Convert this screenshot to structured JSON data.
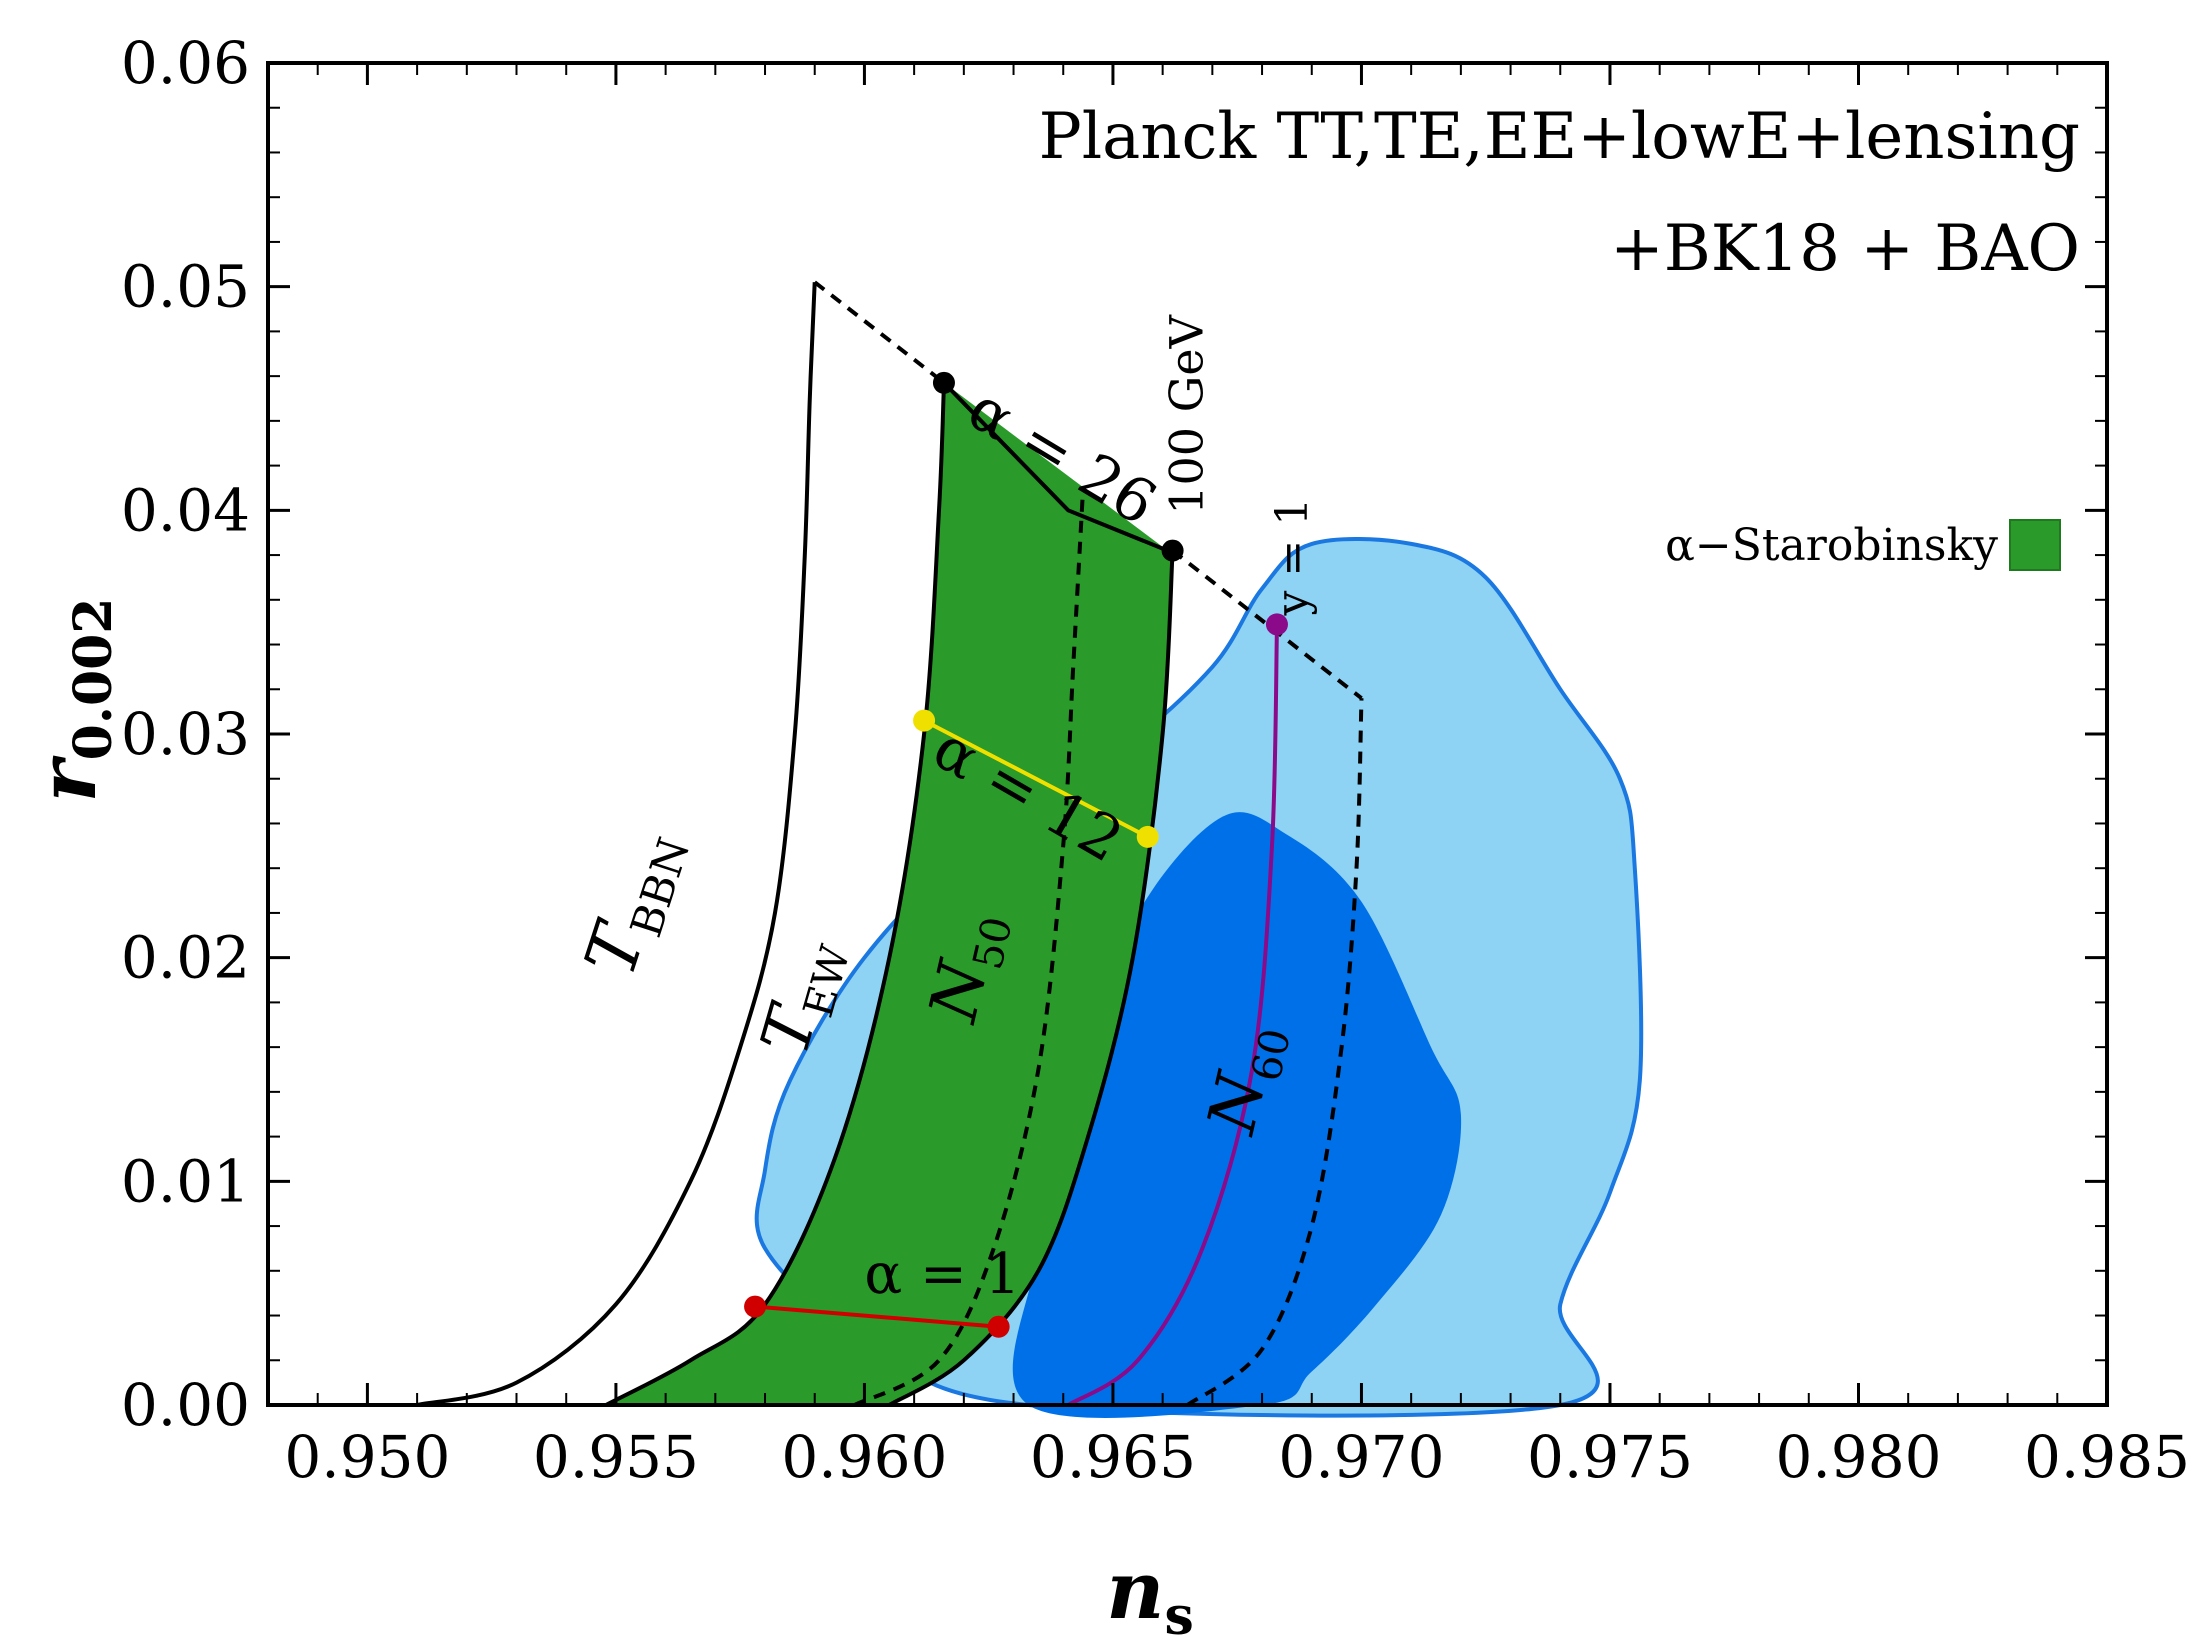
{
  "chart_data": {
    "type": "area",
    "title_lines": [
      "Planck TT,TE,EE+lowE+lensing",
      "+BK18 + BAO"
    ],
    "xlabel": "n",
    "xlabel_sub": "s",
    "ylabel": "r",
    "ylabel_sub": "0.002",
    "xlim": [
      0.948,
      0.985
    ],
    "ylim": [
      0.0,
      0.06
    ],
    "xticks": [
      "0.950",
      "0.955",
      "0.960",
      "0.965",
      "0.970",
      "0.975",
      "0.980",
      "0.985"
    ],
    "yticks": [
      "0.00",
      "0.01",
      "0.02",
      "0.03",
      "0.04",
      "0.05",
      "0.06"
    ],
    "legend": {
      "label": "α−Starobinsky",
      "color": "#2a9a2a",
      "placement": "right-middle"
    },
    "colors": {
      "contour_68": "#0070e8",
      "contour_95": "#8ed2f4",
      "contour_edge": "#1a78e0",
      "region": "#2a9a2a",
      "alpha1_line": "#d00000",
      "alpha12_line": "#f0e000",
      "y1_line": "#8a0a8a"
    },
    "contours": {
      "sigma2": [
        [
          0.958,
          0.0105
        ],
        [
          0.9585,
          0.0145
        ],
        [
          0.96,
          0.02
        ],
        [
          0.962,
          0.0245
        ],
        [
          0.965,
          0.029
        ],
        [
          0.967,
          0.033
        ],
        [
          0.968,
          0.0365
        ],
        [
          0.969,
          0.0385
        ],
        [
          0.971,
          0.0385
        ],
        [
          0.9725,
          0.037
        ],
        [
          0.974,
          0.032
        ],
        [
          0.9752,
          0.028
        ],
        [
          0.9755,
          0.024
        ],
        [
          0.9756,
          0.0145
        ],
        [
          0.975,
          0.0095
        ],
        [
          0.974,
          0.0045
        ],
        [
          0.974,
          0.0
        ],
        [
          0.9633,
          0.0
        ],
        [
          0.96,
          0.003
        ],
        [
          0.958,
          0.007
        ]
      ],
      "sigma1": [
        [
          0.9633,
          0.0
        ],
        [
          0.9635,
          0.007
        ],
        [
          0.9642,
          0.015
        ],
        [
          0.9655,
          0.022
        ],
        [
          0.9672,
          0.0263
        ],
        [
          0.9685,
          0.0255
        ],
        [
          0.97,
          0.0225
        ],
        [
          0.9714,
          0.016
        ],
        [
          0.972,
          0.013
        ],
        [
          0.9716,
          0.0085
        ],
        [
          0.9703,
          0.0045
        ],
        [
          0.969,
          0.0015
        ],
        [
          0.968,
          0.0
        ]
      ]
    },
    "curves": {
      "T_BBN": [
        [
          0.951,
          0.0
        ],
        [
          0.953,
          0.001
        ],
        [
          0.955,
          0.0045
        ],
        [
          0.9565,
          0.01
        ],
        [
          0.9575,
          0.016
        ],
        [
          0.9582,
          0.022
        ],
        [
          0.9586,
          0.03
        ],
        [
          0.9588,
          0.038
        ],
        [
          0.9589,
          0.045
        ],
        [
          0.959,
          0.0502
        ]
      ],
      "T_EW": [
        [
          0.9548,
          0.0
        ],
        [
          0.9565,
          0.002
        ],
        [
          0.958,
          0.0045
        ],
        [
          0.9594,
          0.011
        ],
        [
          0.9605,
          0.02
        ],
        [
          0.9612,
          0.03
        ],
        [
          0.9615,
          0.04
        ],
        [
          0.9616,
          0.0457
        ]
      ],
      "N50": [
        [
          0.9598,
          0.0
        ],
        [
          0.9615,
          0.002
        ],
        [
          0.9626,
          0.007
        ],
        [
          0.9635,
          0.015
        ],
        [
          0.964,
          0.025
        ],
        [
          0.9642,
          0.033
        ],
        [
          0.9644,
          0.041
        ]
      ],
      "N60": [
        [
          0.9665,
          0.0
        ],
        [
          0.968,
          0.0025
        ],
        [
          0.969,
          0.008
        ],
        [
          0.9696,
          0.016
        ],
        [
          0.9699,
          0.024
        ],
        [
          0.97,
          0.0316
        ]
      ],
      "TR_100GeV": [
        [
          0.9661,
          0.0382
        ],
        [
          0.9641,
          0.04
        ],
        [
          0.9616,
          0.0457
        ]
      ],
      "boundary_right": [
        [
          0.9662,
          0.0382
        ],
        [
          0.966,
          0.03
        ],
        [
          0.9654,
          0.02
        ],
        [
          0.9645,
          0.012
        ],
        [
          0.9635,
          0.006
        ],
        [
          0.962,
          0.002
        ],
        [
          0.9605,
          0.0
        ]
      ],
      "dashed_top": [
        [
          0.959,
          0.0502
        ],
        [
          0.9616,
          0.0457
        ]
      ],
      "dashed_right": [
        [
          0.9662,
          0.0382
        ],
        [
          0.97,
          0.0316
        ]
      ],
      "alpha_1": [
        [
          0.9578,
          0.0044
        ],
        [
          0.9627,
          0.0035
        ]
      ],
      "alpha_12": [
        [
          0.9612,
          0.0306
        ],
        [
          0.9657,
          0.0254
        ]
      ],
      "y_1": [
        [
          0.9683,
          0.0349
        ],
        [
          0.9682,
          0.025
        ],
        [
          0.9678,
          0.015
        ],
        [
          0.9668,
          0.007
        ],
        [
          0.9655,
          0.002
        ],
        [
          0.9641,
          0.0
        ]
      ]
    },
    "points": {
      "alpha_26": [
        [
          0.9616,
          0.0457
        ],
        [
          0.9662,
          0.0382
        ]
      ],
      "alpha_12": [
        [
          0.9612,
          0.0306
        ],
        [
          0.9657,
          0.0254
        ]
      ],
      "alpha_1": [
        [
          0.9578,
          0.0044
        ],
        [
          0.9627,
          0.0035
        ]
      ],
      "y_1": [
        [
          0.9683,
          0.0349
        ]
      ]
    },
    "annotations": [
      {
        "key": "a26",
        "text": "α = 26",
        "at": [
          0.962,
          0.044
        ],
        "angle": 31,
        "size": 60
      },
      {
        "key": "a12",
        "text": "α = 12",
        "at": [
          0.9613,
          0.0288
        ],
        "angle": 30,
        "size": 60
      },
      {
        "key": "a1",
        "text": "α = 1",
        "at": [
          0.96,
          0.005
        ],
        "angle": 0,
        "size": 56
      },
      {
        "key": "gev",
        "text": "100 GeV",
        "at": [
          0.9668,
          0.0398
        ],
        "angle": -90,
        "size": 46
      },
      {
        "key": "y1",
        "text": "y = 1",
        "at": [
          0.9689,
          0.0353
        ],
        "angle": -90,
        "size": 44
      },
      {
        "key": "tbbn",
        "text": "T",
        "sub": "BBN",
        "at": [
          0.9553,
          0.019
        ],
        "angle": -72,
        "size": 70
      },
      {
        "key": "tew",
        "text": "T",
        "sub": "EW",
        "at": [
          0.9588,
          0.0155
        ],
        "angle": -74,
        "size": 66
      },
      {
        "key": "n50",
        "text": "N",
        "sub": "50",
        "at": [
          0.9622,
          0.017
        ],
        "angle": -77,
        "size": 66
      },
      {
        "key": "n60",
        "text": "N",
        "sub": "60",
        "at": [
          0.9678,
          0.012
        ],
        "angle": -77,
        "size": 66
      }
    ]
  }
}
